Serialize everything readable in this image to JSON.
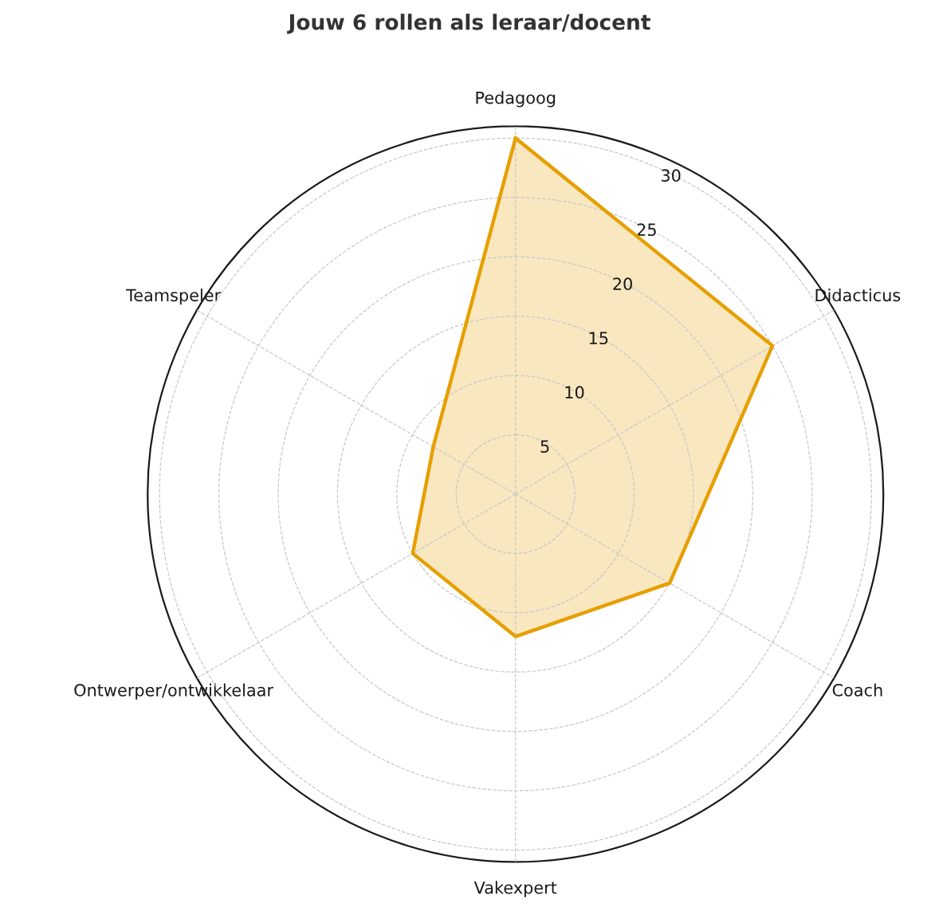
{
  "chart_data": {
    "type": "radar",
    "title": "Jouw 6 rollen als leraar/docent",
    "categories": [
      "Pedagoog",
      "Didacticus",
      "Coach",
      "Vakexpert",
      "Ontwerper/ontwikkelaar",
      "Teamspeler"
    ],
    "series": [
      {
        "color": "#e69f00",
        "values": [
          30,
          25,
          15,
          12,
          10,
          8
        ]
      }
    ],
    "ylim": [
      0,
      31
    ],
    "yticks": [
      5,
      10,
      15,
      20,
      25,
      30
    ],
    "grid": true,
    "line_style": "solid",
    "marker": "none"
  }
}
